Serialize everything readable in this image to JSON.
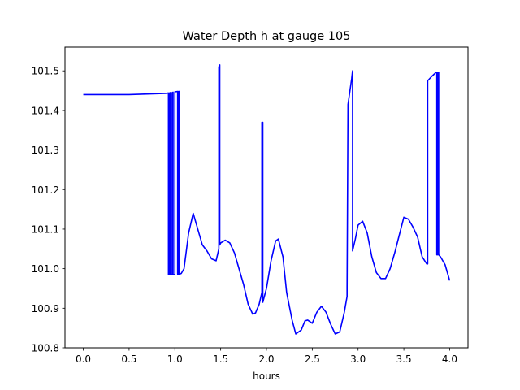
{
  "chart_data": {
    "type": "line",
    "title": "Water Depth h at gauge 105",
    "xlabel": "hours",
    "ylabel": "",
    "xlim": [
      -0.2,
      4.2
    ],
    "ylim": [
      100.8,
      101.56
    ],
    "xticks": [
      0.0,
      0.5,
      1.0,
      1.5,
      2.0,
      2.5,
      3.0,
      3.5,
      4.0
    ],
    "xtick_labels": [
      "0.0",
      "0.5",
      "1.0",
      "1.5",
      "2.0",
      "2.5",
      "3.0",
      "3.5",
      "4.0"
    ],
    "yticks": [
      100.8,
      100.9,
      101.0,
      101.1,
      101.2,
      101.3,
      101.4,
      101.5
    ],
    "ytick_labels": [
      "100.8",
      "100.9",
      "101.0",
      "101.1",
      "101.2",
      "101.3",
      "101.4",
      "101.5"
    ],
    "grid": false,
    "legend": "none",
    "series": [
      {
        "color": "#0000ff",
        "x": [
          0.0,
          0.5,
          0.9,
          0.93,
          0.93,
          0.94,
          0.94,
          0.95,
          0.95,
          0.97,
          0.97,
          0.98,
          0.98,
          1.0,
          1.0,
          1.03,
          1.03,
          1.04,
          1.04,
          1.05,
          1.05,
          1.07,
          1.1,
          1.15,
          1.2,
          1.25,
          1.3,
          1.35,
          1.4,
          1.45,
          1.48,
          1.48,
          1.49,
          1.49,
          1.5,
          1.55,
          1.6,
          1.65,
          1.7,
          1.75,
          1.8,
          1.85,
          1.88,
          1.92,
          1.95,
          1.95,
          1.96,
          1.96,
          2.0,
          2.05,
          2.1,
          2.13,
          2.18,
          2.22,
          2.28,
          2.32,
          2.38,
          2.42,
          2.45,
          2.5,
          2.55,
          2.6,
          2.65,
          2.7,
          2.75,
          2.8,
          2.85,
          2.88,
          2.88,
          2.89,
          2.93,
          2.94,
          2.94,
          2.97,
          3.0,
          3.05,
          3.1,
          3.15,
          3.2,
          3.25,
          3.3,
          3.35,
          3.4,
          3.45,
          3.5,
          3.55,
          3.6,
          3.65,
          3.7,
          3.75,
          3.76,
          3.76,
          3.8,
          3.85,
          3.86,
          3.86,
          3.87,
          3.87,
          3.88,
          3.88,
          3.9,
          3.95,
          4.0
        ],
        "y": [
          101.44,
          101.44,
          101.443,
          101.444,
          100.985,
          100.985,
          101.444,
          101.445,
          100.985,
          100.985,
          101.445,
          101.446,
          100.985,
          100.985,
          101.447,
          101.448,
          100.986,
          100.986,
          101.448,
          101.448,
          100.986,
          100.988,
          101.0,
          101.09,
          101.14,
          101.1,
          101.06,
          101.045,
          101.025,
          101.02,
          101.05,
          101.51,
          101.515,
          101.06,
          101.065,
          101.072,
          101.065,
          101.04,
          101.0,
          100.96,
          100.91,
          100.885,
          100.888,
          100.91,
          100.94,
          101.37,
          101.37,
          100.915,
          100.95,
          101.02,
          101.07,
          101.075,
          101.03,
          100.94,
          100.87,
          100.835,
          100.845,
          100.868,
          100.87,
          100.862,
          100.89,
          100.905,
          100.89,
          100.86,
          100.835,
          100.84,
          100.89,
          100.93,
          100.953,
          101.415,
          101.48,
          101.5,
          101.045,
          101.075,
          101.11,
          101.12,
          101.09,
          101.03,
          100.99,
          100.975,
          100.975,
          101.0,
          101.04,
          101.085,
          101.13,
          101.125,
          101.105,
          101.08,
          101.03,
          101.012,
          101.012,
          101.475,
          101.485,
          101.496,
          101.496,
          101.035,
          101.035,
          101.496,
          101.496,
          101.035,
          101.03,
          101.01,
          100.97
        ]
      }
    ]
  }
}
